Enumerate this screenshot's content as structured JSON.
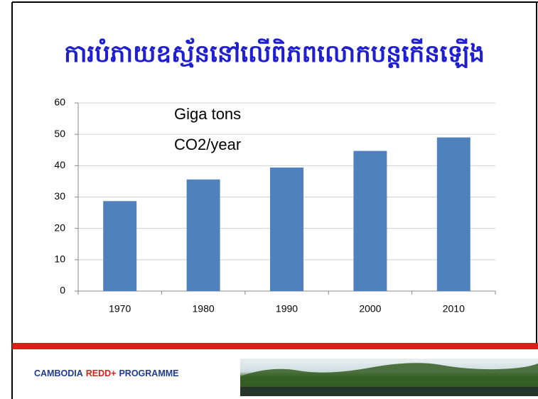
{
  "chart_data": {
    "type": "bar",
    "title": "ការបំភាយឧស្ម័ននៅលើពិភពលោកបន្តកើនឡើង",
    "annotation": [
      "Giga tons",
      "CO2/year"
    ],
    "categories": [
      "1970",
      "1980",
      "1990",
      "2000",
      "2010"
    ],
    "values": [
      28.7,
      35.6,
      39.4,
      44.7,
      49.0
    ],
    "color": "#4f81bd",
    "ylim": [
      0,
      60
    ],
    "yticks": [
      0,
      10,
      20,
      30,
      40,
      50,
      60
    ],
    "grid": true
  },
  "footer": {
    "left": "CAMBODIA",
    "brand": "REDD+",
    "right": "PROGRAMME"
  }
}
